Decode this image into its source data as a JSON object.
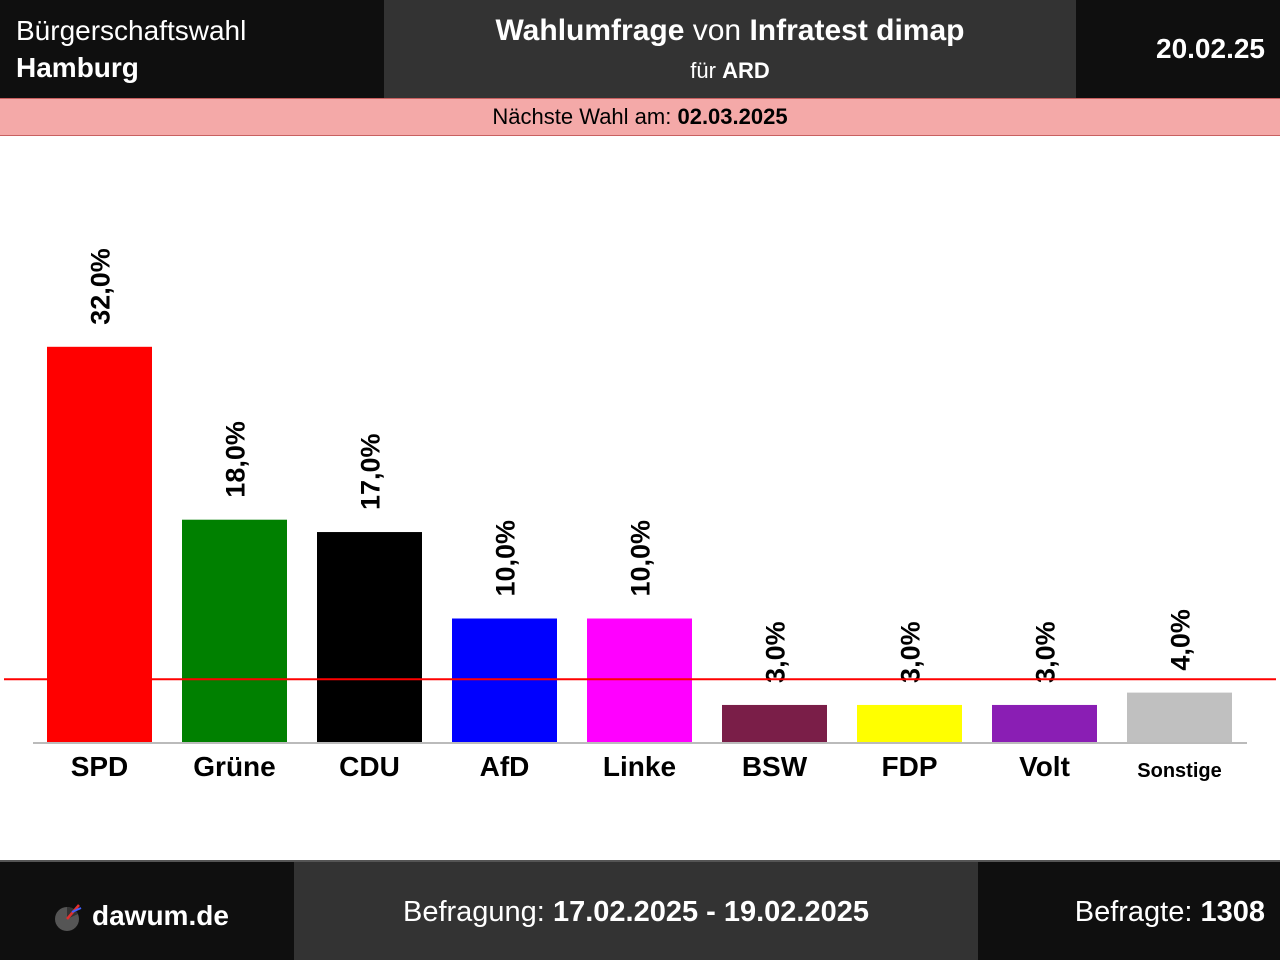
{
  "header": {
    "left_line1": "Bürgerschaftswahl",
    "left_line2": "Hamburg",
    "poll_word": "Wahlumfrage",
    "von_word": "von",
    "institute": "Infratest dimap",
    "client_prefix": "für",
    "client": "ARD",
    "date": "20.02.25"
  },
  "next_election": {
    "label": "Nächste Wahl am:",
    "date": "02.03.2025"
  },
  "chart_data": {
    "type": "bar",
    "categories": [
      "SPD",
      "Grüne",
      "CDU",
      "AfD",
      "Linke",
      "BSW",
      "FDP",
      "Volt",
      "Sonstige"
    ],
    "values": [
      32.0,
      18.0,
      17.0,
      10.0,
      10.0,
      3.0,
      3.0,
      3.0,
      4.0
    ],
    "value_labels": [
      "32,0%",
      "18,0%",
      "17,0%",
      "10,0%",
      "10,0%",
      "3,0%",
      "3,0%",
      "3,0%",
      "4,0%"
    ],
    "colors": [
      "#ff0000",
      "#008000",
      "#000000",
      "#0000ff",
      "#ff00ff",
      "#7a1e48",
      "#ffff00",
      "#8a1eb4",
      "#c0c0c0"
    ],
    "threshold": 5.0,
    "threshold_color": "#ff0000",
    "ylim": [
      0,
      34
    ]
  },
  "footer": {
    "site": "dawum.de",
    "survey_label": "Befragung:",
    "survey_period": "17.02.2025 - 19.02.2025",
    "respondents_label": "Befragte:",
    "respondents": "1308"
  }
}
